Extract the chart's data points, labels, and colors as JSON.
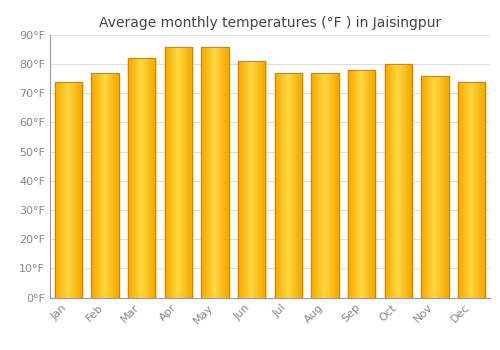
{
  "title": "Average monthly temperatures (°F ) in Jaisingpur",
  "months": [
    "Jan",
    "Feb",
    "Mar",
    "Apr",
    "May",
    "Jun",
    "Jul",
    "Aug",
    "Sep",
    "Oct",
    "Nov",
    "Dec"
  ],
  "values": [
    74,
    77,
    82,
    86,
    86,
    81,
    77,
    77,
    78,
    80,
    76,
    74
  ],
  "bar_color_left": "#F5A800",
  "bar_color_center": "#FFD840",
  "bar_edge_color": "#CC8800",
  "background_color": "#FFFFFF",
  "plot_bg_color": "#FFFFFF",
  "grid_color": "#DDDDDD",
  "tick_label_color": "#888888",
  "title_color": "#444444",
  "ylim": [
    0,
    90
  ],
  "ytick_step": 10,
  "title_fontsize": 10,
  "tick_fontsize": 8
}
